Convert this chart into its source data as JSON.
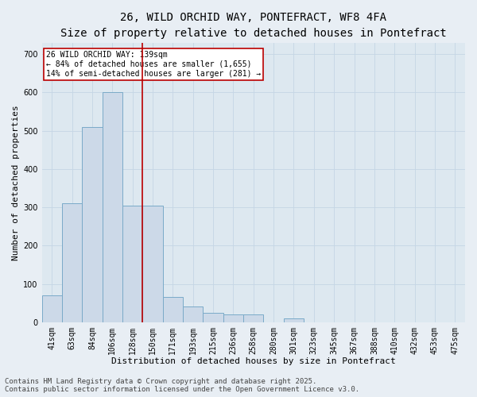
{
  "title_line1": "26, WILD ORCHID WAY, PONTEFRACT, WF8 4FA",
  "title_line2": "Size of property relative to detached houses in Pontefract",
  "xlabel": "Distribution of detached houses by size in Pontefract",
  "ylabel": "Number of detached properties",
  "categories": [
    "41sqm",
    "63sqm",
    "84sqm",
    "106sqm",
    "128sqm",
    "150sqm",
    "171sqm",
    "193sqm",
    "215sqm",
    "236sqm",
    "258sqm",
    "280sqm",
    "301sqm",
    "323sqm",
    "345sqm",
    "367sqm",
    "388sqm",
    "410sqm",
    "432sqm",
    "453sqm",
    "475sqm"
  ],
  "values": [
    70,
    310,
    510,
    600,
    305,
    305,
    65,
    40,
    25,
    20,
    20,
    0,
    10,
    0,
    0,
    0,
    0,
    0,
    0,
    0,
    0
  ],
  "bar_color": "#ccd9e8",
  "bar_edge_color": "#7aaac8",
  "property_line_x": 4.5,
  "property_line_color": "#bb0000",
  "annotation_text": "26 WILD ORCHID WAY: 139sqm\n← 84% of detached houses are smaller (1,655)\n14% of semi-detached houses are larger (281) →",
  "annotation_box_edgecolor": "#bb0000",
  "ylim": [
    0,
    730
  ],
  "yticks": [
    0,
    100,
    200,
    300,
    400,
    500,
    600,
    700
  ],
  "grid_color": "#c5d5e5",
  "background_color": "#dde8f0",
  "fig_background_color": "#e8eef4",
  "footer_text": "Contains HM Land Registry data © Crown copyright and database right 2025.\nContains public sector information licensed under the Open Government Licence v3.0.",
  "title_fontsize": 10,
  "subtitle_fontsize": 9,
  "axis_label_fontsize": 8,
  "tick_fontsize": 7,
  "annotation_fontsize": 7,
  "footer_fontsize": 6.5
}
